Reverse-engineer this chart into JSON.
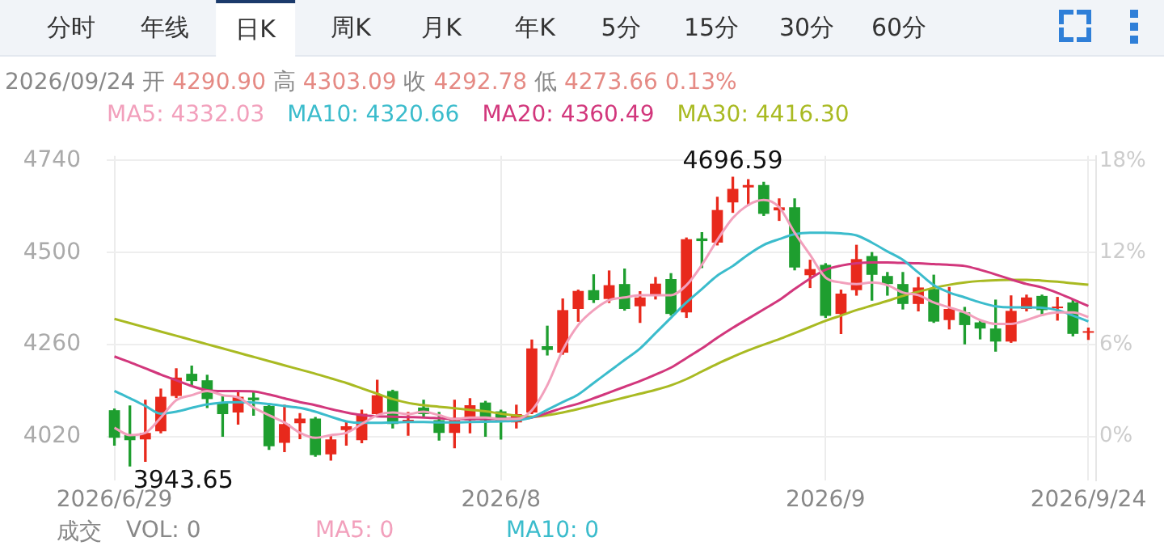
{
  "chart_data": {
    "type": "candlestick",
    "title": "2026/09/24 开 4290.90 高 4303.09 收 4292.78 低 4273.66 0.13%",
    "categories": [
      "2026/6/29",
      null,
      null,
      null,
      null,
      null,
      null,
      null,
      null,
      null,
      null,
      null,
      null,
      null,
      null,
      null,
      null,
      null,
      null,
      null,
      null,
      null,
      null,
      null,
      null,
      "2026/8",
      null,
      null,
      null,
      null,
      null,
      null,
      null,
      null,
      null,
      null,
      null,
      null,
      null,
      null,
      null,
      null,
      null,
      null,
      null,
      null,
      "2026/9",
      null,
      null,
      null,
      null,
      null,
      null,
      null,
      null,
      null,
      null,
      null,
      null,
      null,
      null,
      null,
      null,
      "2026/9/24"
    ],
    "ohlc": [
      [
        4089,
        4092,
        3998,
        4017
      ],
      [
        4024,
        4100,
        3943.65,
        4011
      ],
      [
        4013,
        4115,
        3956,
        4030
      ],
      [
        4034,
        4144,
        4030,
        4124
      ],
      [
        4126,
        4197,
        4122,
        4174
      ],
      [
        4184,
        4204,
        4154,
        4165
      ],
      [
        4167,
        4180,
        4096,
        4118
      ],
      [
        4109,
        4128,
        4021,
        4079
      ],
      [
        4083,
        4135,
        4053,
        4124
      ],
      [
        4122,
        4135,
        4076,
        4115
      ],
      [
        4100,
        4105,
        3987,
        3995
      ],
      [
        4004,
        4102,
        3981,
        4053
      ],
      [
        4055,
        4080,
        4015,
        4067
      ],
      [
        4067,
        4070,
        3969,
        3972
      ],
      [
        3974,
        4024,
        3959,
        4013
      ],
      [
        4037,
        4057,
        3998,
        4047
      ],
      [
        4011,
        4089,
        4004,
        4080
      ],
      [
        4079,
        4167,
        4076,
        4128
      ],
      [
        4139,
        4141,
        4043,
        4053
      ],
      [
        4060,
        4083,
        4024,
        4063
      ],
      [
        4096,
        4115,
        4070,
        4079
      ],
      [
        4063,
        4083,
        4011,
        4030
      ],
      [
        4030,
        4115,
        3991,
        4063
      ],
      [
        4063,
        4119,
        4030,
        4102
      ],
      [
        4109,
        4112,
        4021,
        4063
      ],
      [
        4086,
        4089,
        4014,
        4063
      ],
      [
        4057,
        4102,
        4043,
        4079
      ],
      [
        4083,
        4272,
        4080,
        4250
      ],
      [
        4256,
        4308,
        4233,
        4246
      ],
      [
        4239,
        4379,
        4235,
        4350
      ],
      [
        4353,
        4402,
        4321,
        4400
      ],
      [
        4402,
        4442,
        4370,
        4376
      ],
      [
        4379,
        4452,
        4370,
        4415
      ],
      [
        4418,
        4457,
        4350,
        4353
      ],
      [
        4360,
        4398,
        4318,
        4383
      ],
      [
        4389,
        4435,
        4379,
        4419
      ],
      [
        4431,
        4445,
        4337,
        4340
      ],
      [
        4344,
        4538,
        4331,
        4535
      ],
      [
        4537,
        4552,
        4461,
        4530
      ],
      [
        4526,
        4644,
        4520,
        4611
      ],
      [
        4631,
        4696.59,
        4605,
        4666
      ],
      [
        4670,
        4690,
        4624,
        4676
      ],
      [
        4676,
        4683,
        4597,
        4601
      ],
      [
        4610,
        4640,
        4584,
        4618
      ],
      [
        4618,
        4640,
        4455,
        4461
      ],
      [
        4441,
        4480,
        4409,
        4457
      ],
      [
        4468,
        4471,
        4331,
        4335
      ],
      [
        4340,
        4402,
        4289,
        4393
      ],
      [
        4402,
        4519,
        4389,
        4483
      ],
      [
        4491,
        4500,
        4376,
        4442
      ],
      [
        4439,
        4448,
        4389,
        4418
      ],
      [
        4418,
        4448,
        4353,
        4366
      ],
      [
        4366,
        4435,
        4348,
        4409
      ],
      [
        4405,
        4441,
        4318,
        4320
      ],
      [
        4324,
        4409,
        4301,
        4353
      ],
      [
        4344,
        4357,
        4262,
        4311
      ],
      [
        4318,
        4324,
        4275,
        4302
      ],
      [
        4302,
        4376,
        4243,
        4268
      ],
      [
        4268,
        4387,
        4266,
        4348
      ],
      [
        4353,
        4389,
        4348,
        4383
      ],
      [
        4387,
        4389,
        4337,
        4350
      ],
      [
        4355,
        4383,
        4324,
        4359
      ],
      [
        4370,
        4376,
        4283,
        4288
      ],
      [
        4290.9,
        4303.09,
        4273.66,
        4292.78
      ]
    ],
    "colors": [
      "#1e9e2f",
      "#1e9e2f",
      "#e8291c",
      "#e8291c",
      "#e8291c",
      "#1e9e2f",
      "#1e9e2f",
      "#1e9e2f",
      "#e8291c",
      "#1e9e2f",
      "#1e9e2f",
      "#e8291c",
      "#e8291c",
      "#1e9e2f",
      "#e8291c",
      "#e8291c",
      "#e8291c",
      "#e8291c",
      "#1e9e2f",
      "#e8291c",
      "#1e9e2f",
      "#1e9e2f",
      "#e8291c",
      "#e8291c",
      "#1e9e2f",
      "#1e9e2f",
      "#e8291c",
      "#e8291c",
      "#1e9e2f",
      "#e8291c",
      "#e8291c",
      "#1e9e2f",
      "#e8291c",
      "#1e9e2f",
      "#e8291c",
      "#e8291c",
      "#1e9e2f",
      "#e8291c",
      "#1e9e2f",
      "#e8291c",
      "#e8291c",
      "#e8291c",
      "#1e9e2f",
      "#e8291c",
      "#1e9e2f",
      "#e8291c",
      "#1e9e2f",
      "#e8291c",
      "#e8291c",
      "#1e9e2f",
      "#1e9e2f",
      "#1e9e2f",
      "#e8291c",
      "#1e9e2f",
      "#e8291c",
      "#1e9e2f",
      "#1e9e2f",
      "#1e9e2f",
      "#e8291c",
      "#e8291c",
      "#1e9e2f",
      "#e8291c",
      "#1e9e2f",
      "#e8291c"
    ],
    "series": [
      {
        "name": "MA5",
        "type": "line",
        "color": "#f2a0bc",
        "values": [
          4043,
          4024,
          4030,
          4070,
          4115,
          4128,
          4139,
          4128,
          4122,
          4096,
          4076,
          4057,
          4030,
          4017,
          4024,
          4030,
          4053,
          4076,
          4083,
          4079,
          4085,
          4076,
          4066,
          4070,
          4070,
          4066,
          4066,
          4089,
          4154,
          4246,
          4311,
          4350,
          4376,
          4383,
          4389,
          4389,
          4389,
          4415,
          4468,
          4533,
          4590,
          4624,
          4637,
          4618,
          4552,
          4494,
          4435,
          4422,
          4418,
          4422,
          4415,
          4396,
          4389,
          4370,
          4357,
          4344,
          4324,
          4314,
          4314,
          4324,
          4337,
          4344,
          4344,
          4332.03
        ]
      },
      {
        "name": "MA10",
        "type": "line",
        "color": "#3bbccc",
        "values": [
          4139,
          4120,
          4100,
          4080,
          4085,
          4095,
          4104,
          4109,
          4110,
          4109,
          4105,
          4100,
          4095,
          4085,
          4072,
          4060,
          4056,
          4056,
          4057,
          4058,
          4058,
          4057,
          4057,
          4058,
          4059,
          4060,
          4062,
          4070,
          4090,
          4110,
          4130,
          4160,
          4190,
          4220,
          4250,
          4290,
          4330,
          4370,
          4405,
          4440,
          4465,
          4495,
          4520,
          4535,
          4548,
          4552,
          4552,
          4550,
          4545,
          4526,
          4503,
          4481,
          4448,
          4415,
          4396,
          4383,
          4370,
          4360,
          4357,
          4357,
          4356,
          4350,
          4336,
          4320.66
        ]
      },
      {
        "name": "MA20",
        "type": "line",
        "color": "#d2377c",
        "values": [
          4229,
          4214,
          4198,
          4182,
          4167,
          4152,
          4141,
          4139,
          4139,
          4138,
          4130,
          4120,
          4110,
          4102,
          4092,
          4083,
          4076,
          4073,
          4072,
          4071,
          4070,
          4068,
          4066,
          4066,
          4066,
          4066,
          4067,
          4070,
          4082,
          4095,
          4106,
          4120,
          4135,
          4150,
          4165,
          4182,
          4200,
          4225,
          4250,
          4278,
          4304,
          4328,
          4352,
          4376,
          4405,
          4432,
          4455,
          4466,
          4472,
          4474,
          4474,
          4473,
          4472,
          4470,
          4468,
          4465,
          4455,
          4443,
          4430,
          4418,
          4409,
          4395,
          4378,
          4360.49
        ]
      },
      {
        "name": "MA30",
        "type": "line",
        "color": "#a9ba22",
        "values": [
          4327,
          4316,
          4305,
          4294,
          4283,
          4272,
          4261,
          4250,
          4239,
          4228,
          4217,
          4206,
          4195,
          4184,
          4172,
          4160,
          4146,
          4132,
          4118,
          4108,
          4102,
          4098,
          4094,
          4090,
          4086,
          4080,
          4075,
          4072,
          4076,
          4083,
          4092,
          4102,
          4112,
          4122,
          4132,
          4142,
          4154,
          4170,
          4190,
          4210,
          4228,
          4245,
          4260,
          4274,
          4290,
          4306,
          4322,
          4336,
          4350,
          4362,
          4374,
          4387,
          4398,
          4408,
          4416,
          4422,
          4426,
          4428,
          4429,
          4429,
          4427,
          4424,
          4420,
          4416.3
        ]
      }
    ],
    "ylim": [
      3905,
      4752
    ],
    "yticks": [
      4020,
      4260,
      4500,
      4740
    ],
    "y2lim": [
      -2.9,
      18.32
    ],
    "y2ticks": [
      {
        "value": 0,
        "label": "0%"
      },
      {
        "value": 6,
        "label": "6%"
      },
      {
        "value": 12,
        "label": "12%"
      },
      {
        "value": 18,
        "label": "18%"
      }
    ],
    "grid": true,
    "marker": "none",
    "line_style": "solid",
    "annotations": [
      "分时",
      "年线",
      "日K",
      "周K",
      "月K",
      "年K",
      "5分",
      "15分",
      "30分",
      "60分",
      ": 4332.03",
      ": 4320.66",
      ": 4360.49",
      ": 4416.30",
      "成交",
      "VOL: 0",
      "MA5: 0",
      "MA10: 0",
      "3943.65",
      "4696.59"
    ]
  }
}
